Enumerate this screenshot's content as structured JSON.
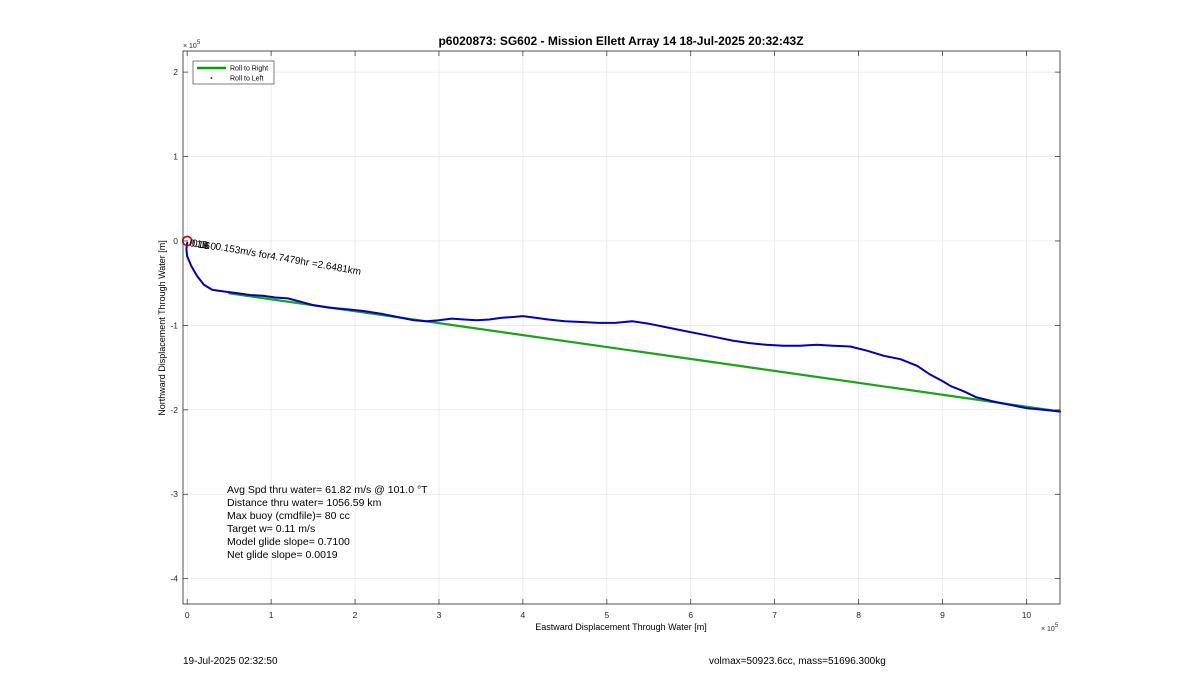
{
  "chart_data": {
    "type": "line",
    "title": "p6020873: SG602 - Mission Ellett Array 14 18-Jul-2025 20:32:43Z",
    "xlabel": "Eastward Displacement Through Water [m]",
    "ylabel": "Northward Displacement Through Water [m]",
    "x_exponent": "× 10",
    "x_exponent_power": "5",
    "y_exponent": "× 10",
    "y_exponent_power": "5",
    "xlim": [
      -0.05,
      10.4
    ],
    "ylim": [
      -4.3,
      2.25
    ],
    "xticks": [
      0,
      1,
      2,
      3,
      4,
      5,
      6,
      7,
      8,
      9,
      10
    ],
    "yticks": [
      -4,
      -3,
      -2,
      -1,
      0,
      1,
      2
    ],
    "grid": true,
    "legend": {
      "placement": "top-left",
      "entries": [
        {
          "label": "Roll to Right",
          "color": "#00a000",
          "style": "line"
        },
        {
          "label": "Roll to Left",
          "color": "#d00000",
          "style": "dot"
        }
      ]
    },
    "series": [
      {
        "name": "Roll to Right",
        "color": "#1aa31a",
        "x": [
          0.5,
          10.4
        ],
        "y": [
          -0.62,
          -2.02
        ]
      },
      {
        "color": "#0000b4",
        "x": [
          0.0,
          -0.01,
          0.0,
          0.05,
          0.12,
          0.2,
          0.3,
          0.45,
          0.6,
          0.75,
          0.9,
          1.05,
          1.2,
          1.35,
          1.5,
          1.7,
          1.9,
          2.1,
          2.3,
          2.5,
          2.7,
          2.85,
          3.0,
          3.15,
          3.3,
          3.45,
          3.6,
          3.75,
          3.9,
          4.0,
          4.15,
          4.3,
          4.5,
          4.7,
          4.9,
          5.1,
          5.3,
          5.5,
          5.7,
          5.9,
          6.1,
          6.3,
          6.5,
          6.7,
          6.9,
          7.1,
          7.3,
          7.5,
          7.7,
          7.9,
          8.1,
          8.3,
          8.5,
          8.7,
          8.85,
          9.0,
          9.1,
          9.25,
          9.4,
          9.6,
          9.8,
          10.0,
          10.2,
          10.4
        ],
        "y": [
          -0.02,
          -0.1,
          -0.18,
          -0.3,
          -0.42,
          -0.52,
          -0.58,
          -0.6,
          -0.62,
          -0.64,
          -0.65,
          -0.67,
          -0.68,
          -0.72,
          -0.76,
          -0.79,
          -0.81,
          -0.83,
          -0.86,
          -0.9,
          -0.94,
          -0.95,
          -0.94,
          -0.92,
          -0.93,
          -0.94,
          -0.93,
          -0.91,
          -0.9,
          -0.89,
          -0.91,
          -0.93,
          -0.95,
          -0.96,
          -0.97,
          -0.97,
          -0.95,
          -0.98,
          -1.02,
          -1.06,
          -1.1,
          -1.14,
          -1.18,
          -1.21,
          -1.23,
          -1.24,
          -1.24,
          -1.23,
          -1.24,
          -1.25,
          -1.3,
          -1.36,
          -1.4,
          -1.48,
          -1.58,
          -1.66,
          -1.72,
          -1.78,
          -1.85,
          -1.9,
          -1.94,
          -1.98,
          -2.0,
          -2.02
        ]
      }
    ],
    "annotations": [
      {
        "text": "0.16",
        "x": 0.01,
        "y": 0.0
      },
      {
        "text": "0.1",
        "x": 0.04,
        "y": 0.0
      },
      {
        "text": "1.6",
        "x": 0.09,
        "y": -0.01
      },
      {
        "text": "0.0",
        "x": 0.16,
        "y": -0.02
      },
      {
        "text": "0.153m/s for4.7479hr =2.6481km",
        "x": 0.32,
        "y": -0.04
      }
    ],
    "start_marker": {
      "x": 0.0,
      "y": 0.0,
      "color": "#d40000"
    }
  },
  "stats": [
    "Avg Spd thru water= 61.82 m/s @ 101.0 °T",
    "Distance thru water= 1056.59 km",
    "Max buoy (cmdfile)= 80 cc",
    "Target w= 0.11 m/s",
    "Model glide slope= 0.7100",
    "Net glide slope= 0.0019"
  ],
  "footer": {
    "left": "19-Jul-2025 02:32:50",
    "right": "volmax=50923.6cc, mass=51696.300kg"
  }
}
